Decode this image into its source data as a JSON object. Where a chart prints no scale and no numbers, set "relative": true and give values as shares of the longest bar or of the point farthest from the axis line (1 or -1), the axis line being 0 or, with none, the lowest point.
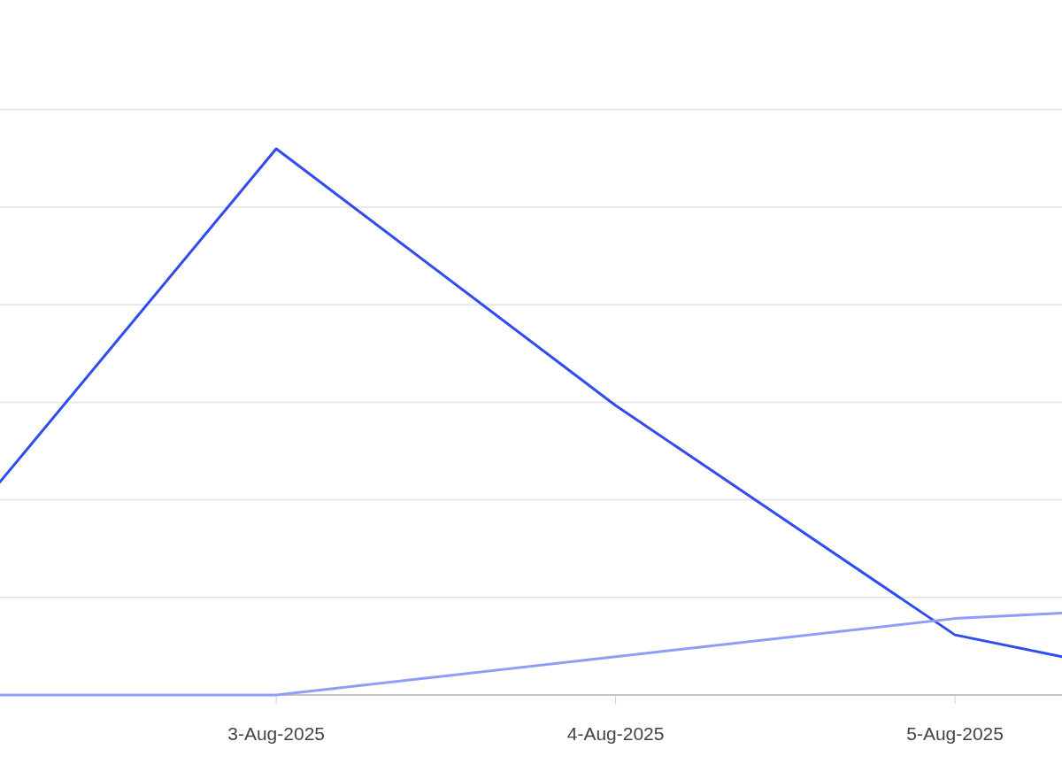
{
  "chart_data": {
    "type": "line",
    "relative": true,
    "grid": "y",
    "marker": "none",
    "line_style": "solid",
    "xlim": [
      "2025-08-02T04:28",
      "2025-08-05T07:34"
    ],
    "xticks": [
      {
        "value": "2025-08-03",
        "label": "3-Aug-2025"
      },
      {
        "value": "2025-08-04",
        "label": "4-Aug-2025"
      },
      {
        "value": "2025-08-05",
        "label": "5-Aug-2025"
      }
    ],
    "series": [
      {
        "color": "#2f4cf0",
        "x": [
          "2025-08-02T04:28",
          "2025-08-03",
          "2025-08-04",
          "2025-08-05",
          "2025-08-05T07:34"
        ],
        "values": [
          0.39,
          1,
          0.53,
          0.11,
          0.07
        ]
      },
      {
        "color": "#8f9cf8",
        "x": [
          "2025-08-02T04:28",
          "2025-08-03",
          "2025-08-04",
          "2025-08-05",
          "2025-08-05T07:34"
        ],
        "values": [
          0,
          0,
          0.07,
          0.14,
          0.15
        ]
      }
    ]
  }
}
